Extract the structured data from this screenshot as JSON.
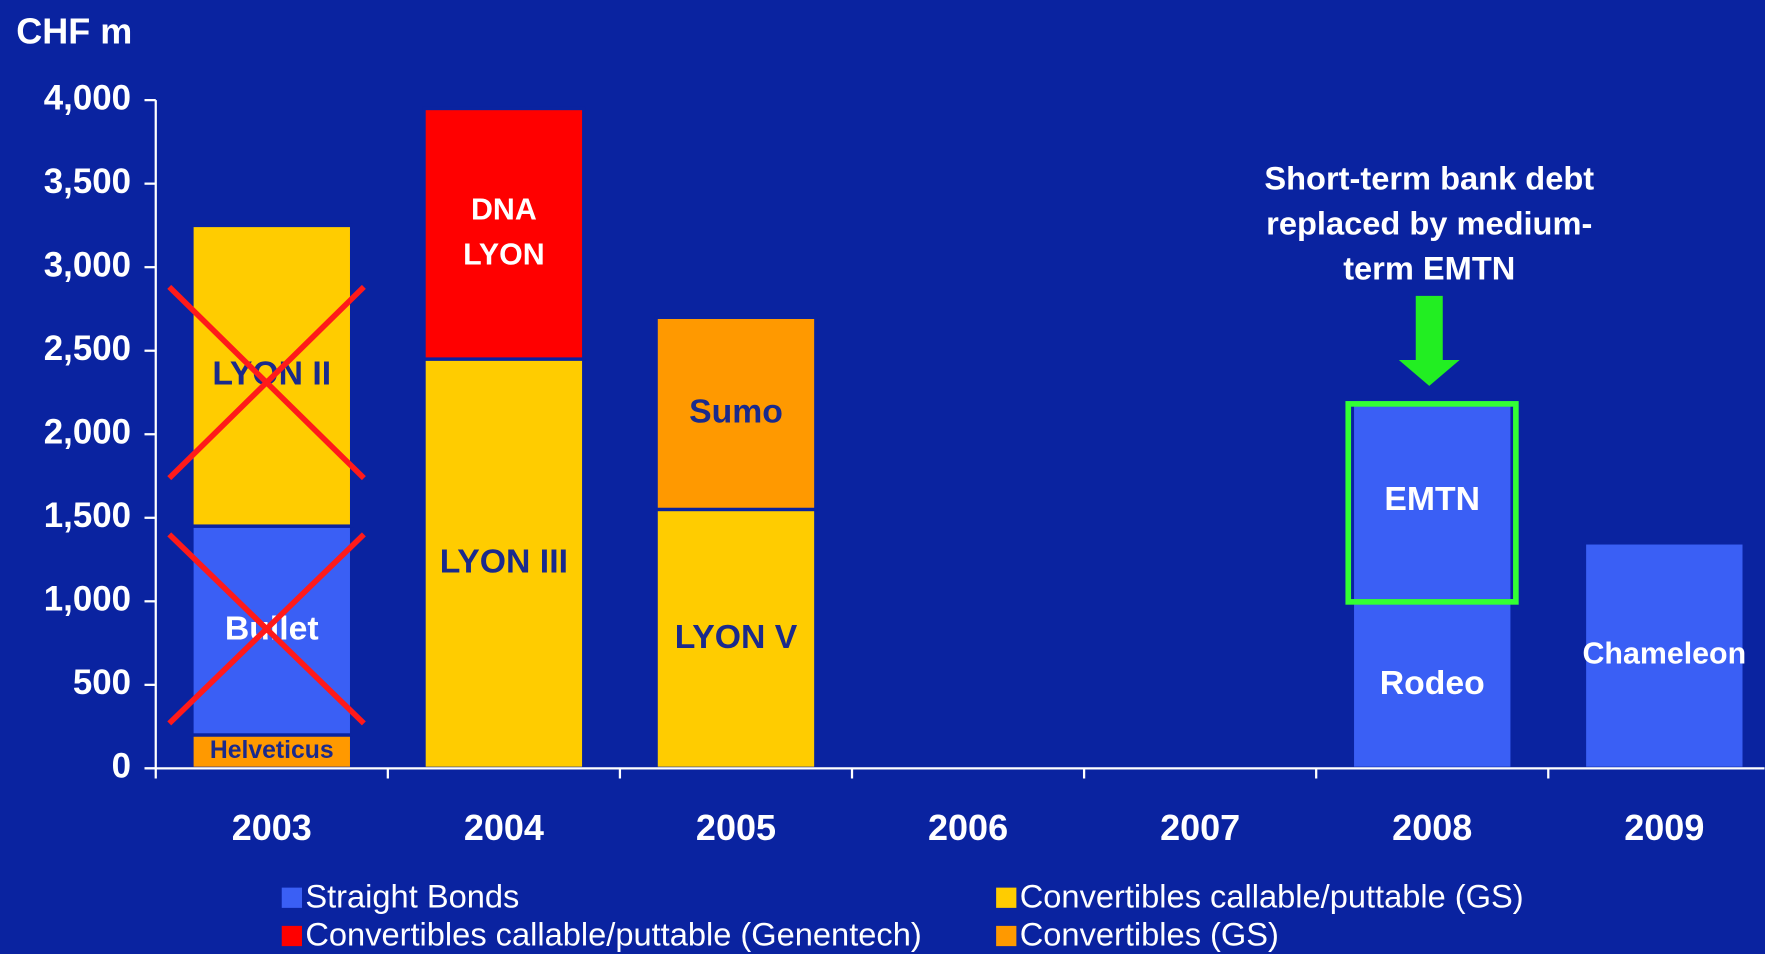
{
  "chart_data": {
    "type": "stacked_bar",
    "y_axis_label": "CHF m",
    "categories": [
      "2003",
      "2004",
      "2005",
      "2006",
      "2007",
      "2008",
      "2009"
    ],
    "stacks": [
      [
        {
          "label": [
            "Helveticus"
          ],
          "value": 200,
          "color": "#ff9900"
        },
        {
          "label": [
            "Bullet"
          ],
          "value": 1250,
          "color": "#3a5ff5"
        },
        {
          "label": [
            "LYON II"
          ],
          "value": 1800,
          "color": "#ffcc00"
        }
      ],
      [
        {
          "label": [
            "LYON III"
          ],
          "value": 2450,
          "color": "#ffcc00"
        },
        {
          "label": [
            "DNA",
            "LYON"
          ],
          "value": 1500,
          "color": "#ff0000"
        }
      ],
      [
        {
          "label": [
            "LYON V"
          ],
          "value": 1550,
          "color": "#ffcc00"
        },
        {
          "label": [
            "Sumo"
          ],
          "value": 1150,
          "color": "#ff9900"
        }
      ],
      [],
      [],
      [
        {
          "label": [
            "Rodeo"
          ],
          "value": 1000,
          "color": "#3a5ff5"
        },
        {
          "label": [
            "EMTN"
          ],
          "value": 1200,
          "color": "#3a5ff5"
        }
      ],
      [
        {
          "label": [
            "Chameleon"
          ],
          "value": 1350,
          "color": "#3a5ff5"
        }
      ]
    ],
    "legend": [
      {
        "name": "Straight Bonds",
        "color": "#3a5ff5"
      },
      {
        "name": "Convertibles callable/puttable (GS)",
        "color": "#ffcc00"
      },
      {
        "name": "Convertibles callable/puttable (Genentech)",
        "color": "#ff0000"
      },
      {
        "name": "Convertibles (GS)",
        "color": "#ff9900"
      }
    ],
    "annotation": [
      "Short-term bank debt",
      "replaced by medium-",
      "term EMTN"
    ],
    "ylim": [
      0,
      4000
    ],
    "yticks": [
      0,
      500,
      {
        "value": 1000,
        "label": "1,000"
      },
      {
        "value": 1500,
        "label": "1,500"
      },
      {
        "value": 2000,
        "label": "2,000"
      },
      {
        "value": 2500,
        "label": "2,500"
      },
      {
        "value": 3000,
        "label": "3,000"
      },
      {
        "value": 3500,
        "label": "3,500"
      },
      {
        "value": 4000,
        "label": "4,000"
      }
    ]
  }
}
